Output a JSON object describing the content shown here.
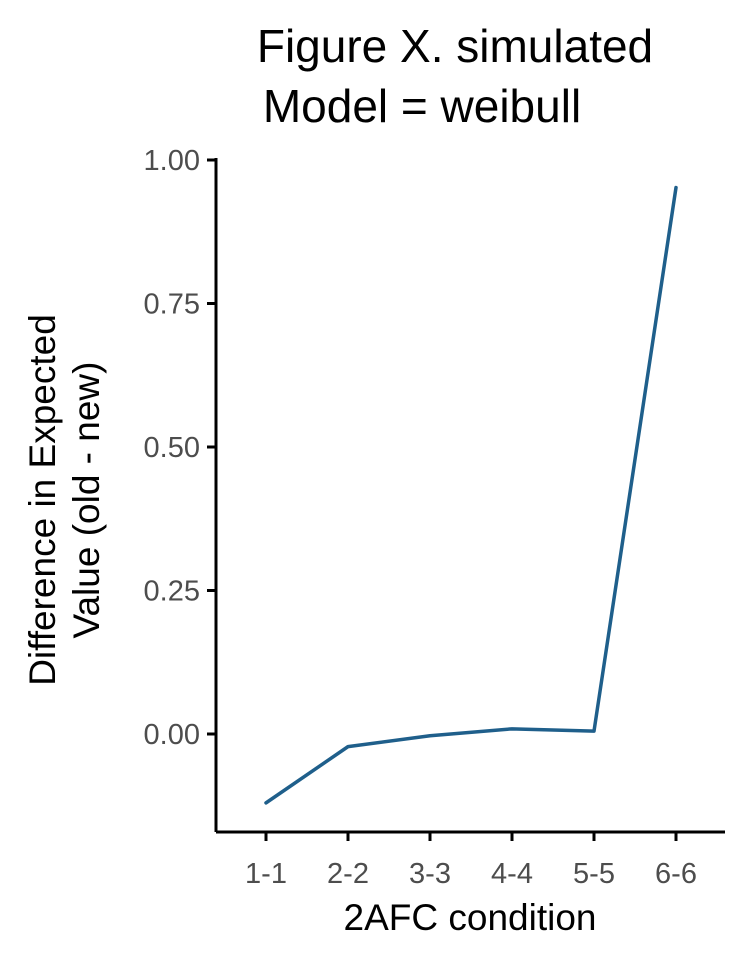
{
  "chart_data": {
    "type": "line",
    "title": [
      "Figure X. simulated",
      "Model = weibull"
    ],
    "xlabel": "2AFC condition",
    "ylabel": [
      "Difference in Expected",
      "Value (old - new)"
    ],
    "categories": [
      "1-1",
      "2-2",
      "3-3",
      "4-4",
      "5-5",
      "6-6"
    ],
    "series": [
      {
        "values": [
          -0.12,
          -0.022,
          -0.003,
          0.009,
          0.005,
          0.952
        ]
      }
    ],
    "yticks": [
      "0.00",
      "0.25",
      "0.50",
      "0.75",
      "1.00"
    ],
    "yticks_values": [
      0,
      0.25,
      0.5,
      0.75,
      1.0
    ],
    "ylim": [
      -0.17,
      1.0
    ],
    "grid": false,
    "legend": "none",
    "line_color": "#1f5f8b"
  }
}
